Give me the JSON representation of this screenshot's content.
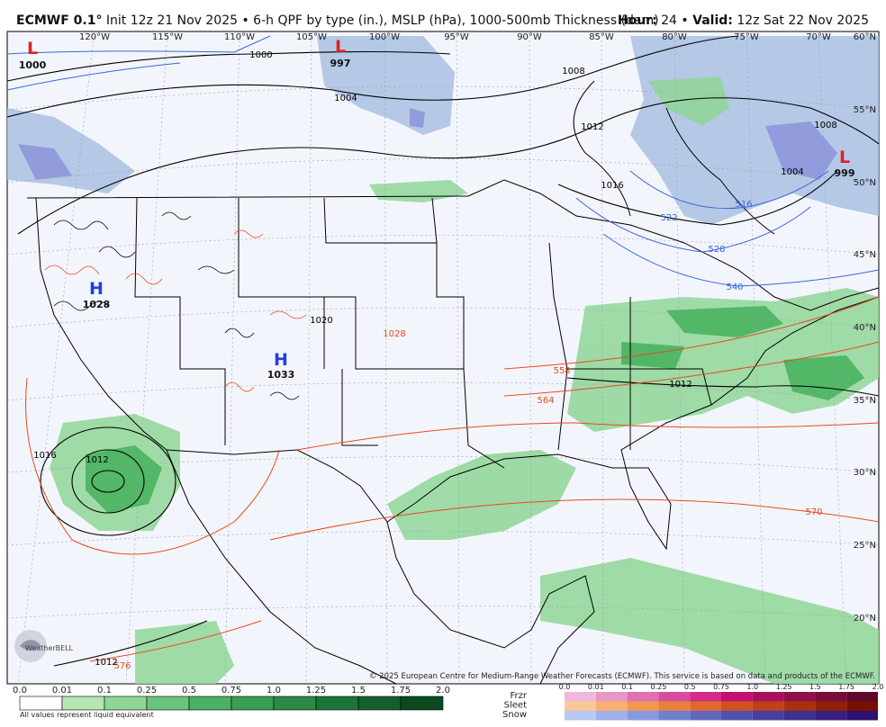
{
  "header": {
    "model": "ECMWF 0.1°",
    "description": "Init 12z 21 Nov 2025 • 6-h QPF by type (in.), MSLP (hPa), 1000-500mb Thickness (dam)",
    "hour_label": "Hour:",
    "hour": "24",
    "separator": "•",
    "valid_label": "Valid:",
    "valid": "12z Sat 22 Nov 2025"
  },
  "map": {
    "lon_labels": [
      "120°W",
      "115°W",
      "110°W",
      "105°W",
      "100°W",
      "95°W",
      "90°W",
      "85°W",
      "80°W",
      "75°W",
      "70°W"
    ],
    "lat_labels": [
      "60°N",
      "55°N",
      "50°N",
      "45°N",
      "40°N",
      "35°N",
      "30°N",
      "25°N",
      "20°N"
    ],
    "centers": [
      {
        "symbol": "L",
        "value": "1000"
      },
      {
        "symbol": "L",
        "value": "997"
      },
      {
        "symbol": "H",
        "value": "1028"
      },
      {
        "symbol": "H",
        "value": "1033"
      },
      {
        "symbol": "L",
        "value": "999"
      }
    ],
    "contour_labels": [
      "1000",
      "1004",
      "1008",
      "1012",
      "1016",
      "1012",
      "1016",
      "1012",
      "1020",
      "1028",
      "558",
      "564",
      "570",
      "516",
      "522",
      "528",
      "540",
      "1004",
      "1008",
      "576",
      "1012"
    ]
  },
  "logo": "WeatherBELL",
  "credit": "© 2025 European Centre for Medium-Range Weather Forecasts (ECMWF). This service is based on data and products of the ECMWF.",
  "legend": {
    "rain_ticks": [
      "0.0",
      "0.01",
      "0.1",
      "0.25",
      "0.5",
      "0.75",
      "1.0",
      "1.25",
      "1.5",
      "1.75",
      "2.0"
    ],
    "mixed_ticks": [
      "0.0",
      "0.01",
      "0.1",
      "0.25",
      "0.5",
      "0.75",
      "1.0",
      "1.25",
      "1.5",
      "1.75",
      "2.0"
    ],
    "types": [
      "Frzr",
      "Sleet",
      "Snow"
    ],
    "note": "All values represent liquid equivalent"
  }
}
